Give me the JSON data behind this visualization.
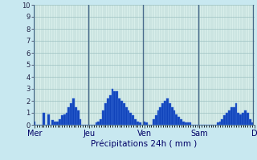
{
  "xlabel": "Précipitations 24h ( mm )",
  "ylim": [
    0,
    10
  ],
  "yticks": [
    0,
    1,
    2,
    3,
    4,
    5,
    6,
    7,
    8,
    9,
    10
  ],
  "background_color": "#c8e8f0",
  "plot_bg_color": "#d8eeea",
  "bar_color": "#1144bb",
  "bar_edge_color": "#4477dd",
  "grid_color": "#9bbfbf",
  "day_line_color": "#446688",
  "xlabel_color": "#000066",
  "tick_color": "#222244",
  "day_labels": [
    "Mer",
    "Jeu",
    "Ven",
    "Sam",
    "D"
  ],
  "day_positions": [
    0,
    24,
    48,
    72,
    96
  ],
  "values": [
    0.3,
    0.0,
    0.0,
    0.0,
    1.0,
    0.0,
    0.9,
    0.0,
    0.4,
    0.3,
    0.3,
    0.5,
    0.8,
    0.9,
    1.0,
    1.5,
    1.8,
    2.2,
    1.5,
    1.2,
    0.5,
    0.0,
    0.0,
    0.0,
    0.0,
    0.0,
    0.0,
    0.2,
    0.3,
    0.5,
    1.2,
    1.8,
    2.2,
    2.5,
    3.0,
    2.8,
    2.8,
    2.2,
    2.0,
    1.8,
    1.5,
    1.2,
    1.0,
    0.8,
    0.5,
    0.3,
    0.2,
    0.0,
    0.3,
    0.2,
    0.0,
    0.0,
    0.5,
    0.8,
    1.2,
    1.5,
    1.8,
    2.0,
    2.2,
    1.8,
    1.5,
    1.2,
    0.9,
    0.7,
    0.5,
    0.3,
    0.2,
    0.2,
    0.2,
    0.0,
    0.0,
    0.0,
    0.0,
    0.0,
    0.0,
    0.0,
    0.0,
    0.0,
    0.0,
    0.0,
    0.2,
    0.3,
    0.5,
    0.8,
    1.0,
    1.2,
    1.5,
    1.5,
    1.8,
    1.0,
    0.9,
    1.0,
    1.2,
    1.0,
    0.5,
    0.2
  ]
}
